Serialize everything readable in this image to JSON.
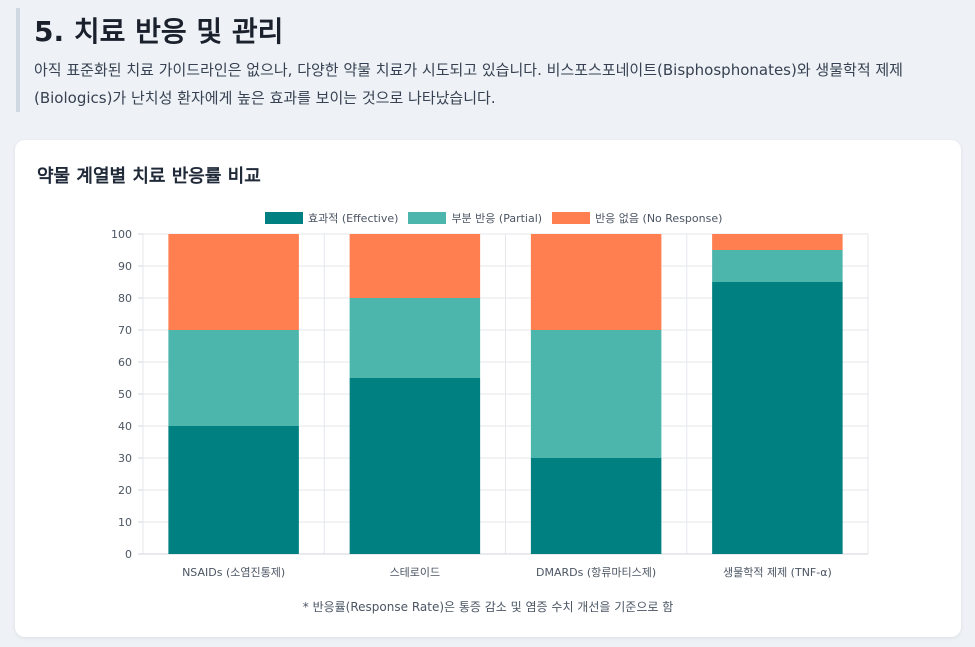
{
  "section": {
    "title": "5. 치료 반응 및 관리",
    "description": "아직 표준화된 치료 가이드라인은 없으나, 다양한 약물 치료가 시도되고 있습니다. 비스포스포네이트(Bisphosphonates)와 생물학적 제제(Biologics)가 난치성 환자에게 높은 효과를 보이는 것으로 나타났습니다."
  },
  "card": {
    "title": "약물 계열별 치료 반응률 비교",
    "footnote": "* 반응률(Response Rate)은 통증 감소 및 염증 수치 개선을 기준으로 함"
  },
  "chart_data": {
    "type": "bar",
    "stacked": true,
    "categories": [
      "NSAIDs (소염진통제)",
      "스테로이드",
      "DMARDs (항류마티스제)",
      "생물학적 제제 (TNF-α)"
    ],
    "series": [
      {
        "name": "효과적 (Effective)",
        "values": [
          40,
          55,
          30,
          85
        ],
        "color": "#008080"
      },
      {
        "name": "부분 반응 (Partial)",
        "values": [
          30,
          25,
          40,
          10
        ],
        "color": "#4db6ac"
      },
      {
        "name": "반응 없음 (No Response)",
        "values": [
          30,
          20,
          30,
          5
        ],
        "color": "#ff7f50"
      }
    ],
    "ylim": [
      0,
      100
    ],
    "yticks": [
      0,
      10,
      20,
      30,
      40,
      50,
      60,
      70,
      80,
      90,
      100
    ],
    "grid": true,
    "legend_position": "top"
  }
}
